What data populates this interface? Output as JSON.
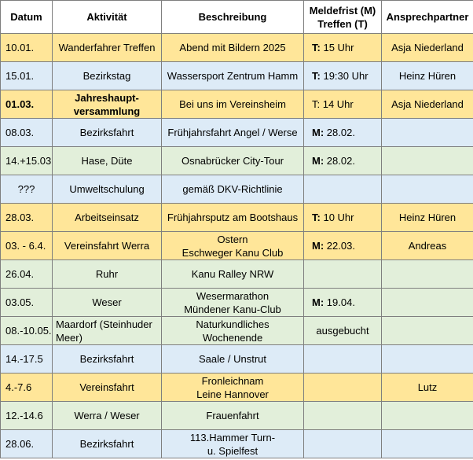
{
  "headers": {
    "date": "Datum",
    "activity": "Aktivität",
    "description": "Beschreibung",
    "deadline_line1": "Meldefrist (M)",
    "deadline_line2": "Treffen (T)",
    "contact": "Ansprechpartner"
  },
  "colors": {
    "orange": "#ffe699",
    "blue": "#ddebf7",
    "green": "#e2efda",
    "border": "#7f7f7f"
  },
  "rows": [
    {
      "color": "orange",
      "date": "10.01.",
      "activity": "Wanderfahrer Treffen",
      "description": "Abend mit Bildern 2025",
      "deadline_prefix": "T:",
      "deadline": "15 Uhr",
      "contact": "Asja Niederland"
    },
    {
      "color": "blue",
      "date": "15.01.",
      "activity": "Bezirkstag",
      "description": "Wassersport Zentrum Hamm",
      "deadline_prefix": "T:",
      "deadline": "19:30 Uhr",
      "contact": "Heinz Hüren"
    },
    {
      "color": "orange",
      "date": "01.03.",
      "activity": "Jahreshaupt-\nversammlung",
      "description": "Bei uns im Vereinsheim",
      "deadline_prefix": "",
      "deadline": "T: 14 Uhr",
      "contact": "Asja Niederland"
    },
    {
      "color": "blue",
      "date": "08.03.",
      "activity": "Bezirksfahrt",
      "description": "Frühjahrsfahrt Angel / Werse",
      "deadline_prefix": "M:",
      "deadline": "28.02.",
      "contact": ""
    },
    {
      "color": "green",
      "date": "14.+15.03",
      "activity": "Hase, Düte",
      "description": "Osnabrücker City-Tour",
      "deadline_prefix": "M:",
      "deadline": "28.02.",
      "contact": ""
    },
    {
      "color": "blue",
      "date": "???",
      "activity": "Umweltschulung",
      "description": "gemäß DKV-Richtlinie",
      "deadline_prefix": "",
      "deadline": "",
      "contact": ""
    },
    {
      "color": "orange",
      "date": "28.03.",
      "activity": "Arbeitseinsatz",
      "description": "Frühjahrsputz am Bootshaus",
      "deadline_prefix": "T:",
      "deadline": "10 Uhr",
      "contact": "Heinz Hüren"
    },
    {
      "color": "orange",
      "date": "03. - 6.4.",
      "activity": "Vereinsfahrt Werra",
      "description": "Ostern\nEschweger Kanu Club",
      "deadline_prefix": "M:",
      "deadline": "22.03.",
      "contact": "Andreas"
    },
    {
      "color": "green",
      "date": "26.04.",
      "activity": "Ruhr",
      "description": "Kanu Ralley NRW",
      "deadline_prefix": "",
      "deadline": "",
      "contact": ""
    },
    {
      "color": "green",
      "date": "03.05.",
      "activity": "Weser",
      "description": "Wesermarathon\nMündener Kanu-Club",
      "deadline_prefix": "M:",
      "deadline": "19.04.",
      "contact": ""
    },
    {
      "color": "green",
      "date": "08.-10.05.",
      "activity": "Maardorf (Steinhuder\nMeer)",
      "description": "Naturkundliches Wochenende",
      "deadline_prefix": "",
      "deadline": "ausgebucht",
      "contact": ""
    },
    {
      "color": "blue",
      "date": "14.-17.5",
      "activity": "Bezirksfahrt",
      "description": "Saale / Unstrut",
      "deadline_prefix": "",
      "deadline": "",
      "contact": ""
    },
    {
      "color": "orange",
      "date": "4.-7.6",
      "activity": "Vereinsfahrt",
      "description": "Fronleichnam\nLeine Hannover",
      "deadline_prefix": "",
      "deadline": "",
      "contact": "Lutz"
    },
    {
      "color": "green",
      "date": "12.-14.6",
      "activity": "Werra / Weser",
      "description": "Frauenfahrt",
      "deadline_prefix": "",
      "deadline": "",
      "contact": ""
    },
    {
      "color": "blue",
      "date": "28.06.",
      "activity": "Bezirksfahrt",
      "description": "113.Hammer Turn-\nu. Spielfest",
      "deadline_prefix": "",
      "deadline": "",
      "contact": ""
    }
  ]
}
